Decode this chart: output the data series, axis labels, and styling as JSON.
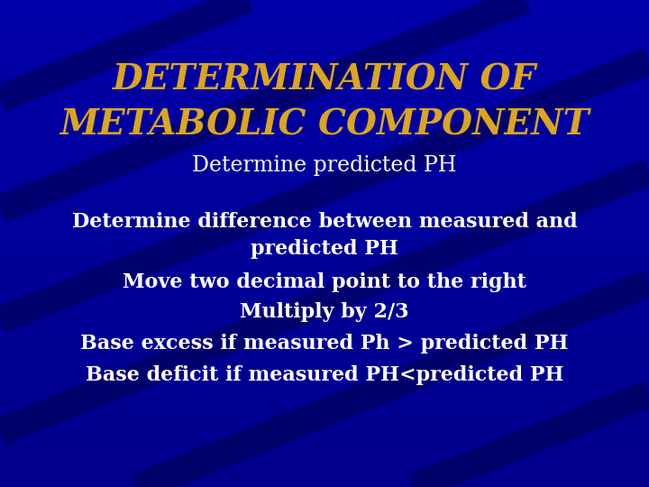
{
  "title_line1": "DETERMINATION OF",
  "title_line2": "METABOLIC COMPONENT",
  "subtitle": "Determine predicted PH",
  "body_lines": [
    "Determine difference between measured and",
    "predicted PH",
    "Move two decimal point to the right",
    "Multiply by 2/3",
    "Base excess if measured Ph > predicted PH",
    "Base deficit if measured PH<predicted PH"
  ],
  "bg_color": "#00008B",
  "title_color": "#DAA520",
  "subtitle_color": "#FFFFFF",
  "body_color": "#FFFFFF",
  "title_fontsize": 28,
  "subtitle_fontsize": 17,
  "body_fontsize": 16,
  "stripe_color": "#000066",
  "stripe_color2": "#0000AA"
}
